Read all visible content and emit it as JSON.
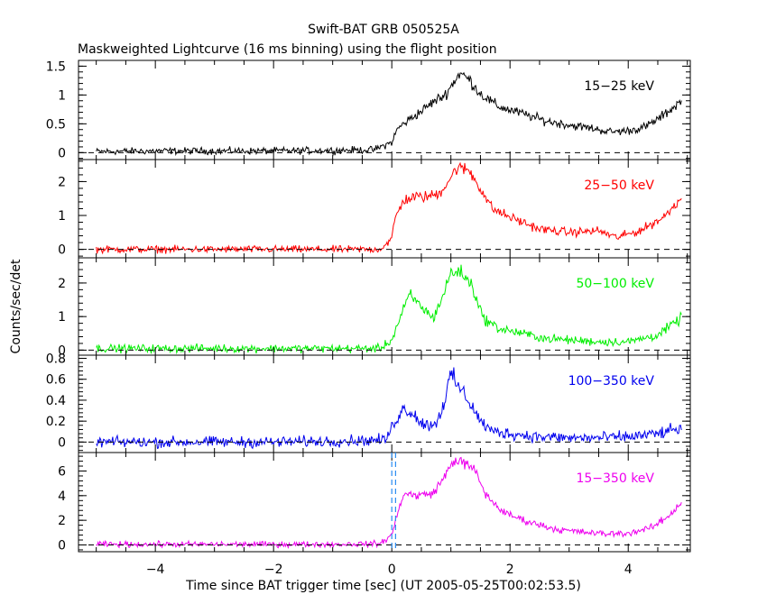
{
  "chart_data": {
    "type": "line",
    "title": "Swift-BAT GRB 050525A",
    "subtitle": "Maskweighted Lightcurve (16 ms binning) using the flight position",
    "xlabel": "Time since BAT trigger time [sec] (UT 2005-05-25T00:02:53.5)",
    "ylabel": "Counts/sec/det",
    "xlim": [
      -5.3,
      5.05
    ],
    "xticks": [
      -4,
      -2,
      0,
      2,
      4
    ],
    "xtick_labels": [
      "−4",
      "−2",
      "0",
      "2",
      "4"
    ],
    "markers": {
      "vertical_dashed_x": [
        0.0,
        0.064
      ],
      "marker_color": "#2a8cf2",
      "zero_line": "dashed"
    },
    "panels": [
      {
        "name": "15−25 keV",
        "color": "#000000",
        "ylim": [
          -0.12,
          1.6
        ],
        "yticks": [
          0,
          0.5,
          1,
          1.5
        ],
        "ytick_labels": [
          "0",
          "0.5",
          "1",
          "1.5"
        ],
        "t": [
          -5.0,
          -4.0,
          -3.0,
          -2.0,
          -1.0,
          -0.3,
          0.0,
          0.1,
          0.3,
          0.5,
          0.7,
          0.9,
          1.0,
          1.15,
          1.3,
          1.5,
          1.8,
          2.2,
          2.6,
          3.0,
          3.4,
          3.7,
          4.0,
          4.3,
          4.6,
          4.9
        ],
        "y": [
          0.02,
          0.03,
          0.03,
          0.03,
          0.04,
          0.05,
          0.18,
          0.42,
          0.58,
          0.72,
          0.88,
          1.0,
          1.15,
          1.38,
          1.28,
          1.02,
          0.8,
          0.68,
          0.55,
          0.48,
          0.42,
          0.36,
          0.38,
          0.45,
          0.65,
          0.9
        ],
        "noise": 0.05
      },
      {
        "name": "25−50 keV",
        "color": "#ff0000",
        "ylim": [
          -0.25,
          2.65
        ],
        "yticks": [
          0,
          1,
          2
        ],
        "ytick_labels": [
          "0",
          "1",
          "2"
        ],
        "t": [
          -5.0,
          -4.0,
          -3.0,
          -2.0,
          -1.0,
          -0.2,
          0.0,
          0.05,
          0.2,
          0.4,
          0.6,
          0.8,
          0.95,
          1.1,
          1.3,
          1.5,
          1.7,
          2.0,
          2.5,
          3.0,
          3.5,
          3.8,
          4.2,
          4.6,
          4.9
        ],
        "y": [
          0.0,
          0.0,
          0.0,
          0.0,
          0.0,
          0.0,
          0.3,
          0.9,
          1.45,
          1.55,
          1.55,
          1.65,
          2.0,
          2.4,
          2.35,
          1.8,
          1.2,
          0.95,
          0.6,
          0.5,
          0.55,
          0.35,
          0.55,
          0.95,
          1.55
        ],
        "noise": 0.09
      },
      {
        "name": "50−100 keV",
        "color": "#00ee00",
        "ylim": [
          -0.15,
          2.75
        ],
        "yticks": [
          0,
          1,
          2
        ],
        "ytick_labels": [
          "0",
          "1",
          "2"
        ],
        "t": [
          -5.0,
          -4.0,
          -3.0,
          -2.0,
          -1.0,
          -0.2,
          0.0,
          0.15,
          0.3,
          0.5,
          0.7,
          0.85,
          1.0,
          1.15,
          1.35,
          1.55,
          1.8,
          2.2,
          2.6,
          3.0,
          3.5,
          4.0,
          4.5,
          4.9
        ],
        "y": [
          0.05,
          0.05,
          0.05,
          0.05,
          0.05,
          0.05,
          0.3,
          1.0,
          1.65,
          1.3,
          0.95,
          1.55,
          2.3,
          2.35,
          1.95,
          0.95,
          0.65,
          0.5,
          0.35,
          0.3,
          0.25,
          0.25,
          0.45,
          0.95
        ],
        "noise": 0.1
      },
      {
        "name": "100−350 keV",
        "color": "#0000ee",
        "ylim": [
          -0.1,
          0.83
        ],
        "yticks": [
          0,
          0.2,
          0.4,
          0.6,
          0.8
        ],
        "ytick_labels": [
          "0",
          "0.2",
          "0.4",
          "0.6",
          "0.8"
        ],
        "t": [
          -5.0,
          -4.0,
          -3.0,
          -2.0,
          -1.0,
          -0.1,
          0.05,
          0.2,
          0.35,
          0.55,
          0.75,
          0.9,
          1.0,
          1.1,
          1.3,
          1.5,
          1.7,
          2.0,
          2.5,
          3.0,
          3.5,
          4.0,
          4.5,
          4.9
        ],
        "y": [
          0.0,
          0.0,
          0.0,
          0.0,
          0.01,
          0.02,
          0.2,
          0.32,
          0.28,
          0.16,
          0.18,
          0.4,
          0.65,
          0.55,
          0.4,
          0.2,
          0.1,
          0.08,
          0.05,
          0.04,
          0.04,
          0.05,
          0.08,
          0.13
        ],
        "noise": 0.045
      },
      {
        "name": "15−350 keV",
        "color": "#ee00ee",
        "ylim": [
          -0.55,
          7.5
        ],
        "yticks": [
          0,
          2,
          4,
          6
        ],
        "ytick_labels": [
          "0",
          "2",
          "4",
          "6"
        ],
        "t": [
          -5.0,
          -4.0,
          -3.0,
          -2.0,
          -1.0,
          -0.2,
          0.0,
          0.1,
          0.2,
          0.4,
          0.7,
          0.9,
          1.05,
          1.2,
          1.4,
          1.6,
          1.9,
          2.3,
          2.8,
          3.2,
          3.6,
          4.0,
          4.4,
          4.7,
          4.9
        ],
        "y": [
          0.05,
          0.05,
          0.05,
          0.05,
          0.05,
          0.1,
          0.8,
          2.6,
          4.2,
          4.0,
          4.2,
          5.6,
          6.9,
          6.7,
          6.1,
          4.0,
          2.6,
          1.9,
          1.25,
          1.05,
          0.9,
          0.95,
          1.4,
          2.4,
          3.5
        ],
        "noise": 0.2
      }
    ]
  }
}
